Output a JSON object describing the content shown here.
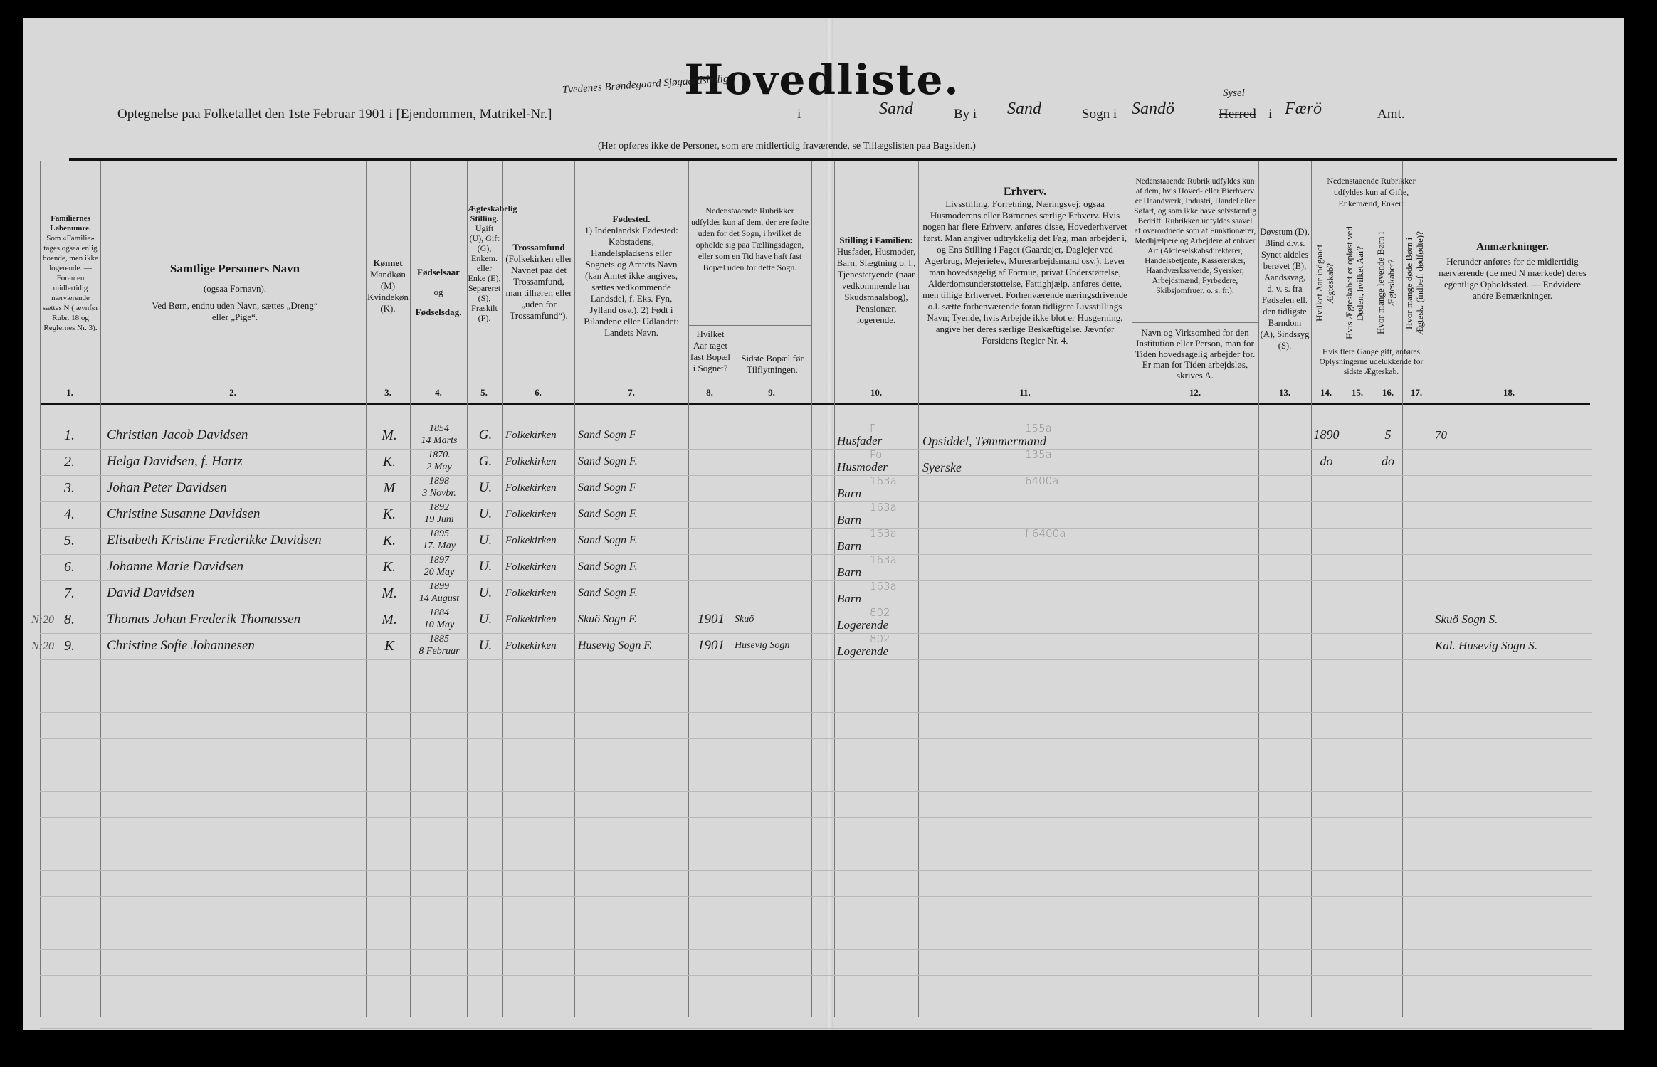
{
  "title": "Hovedliste.",
  "subtitle": {
    "prefix": "Optegnelse paa Folketallet den 1ste Februar 1901 i [Ejendommen, Matrikel-Nr.]",
    "property_handwritten": "Tvedenes Brøndegaard Sjøgaardsbolig",
    "i_label": "i",
    "place_handwritten": "Sand",
    "by_label": "By i",
    "by_handwritten": "Sand",
    "sogn_label": "Sogn i",
    "sogn_handwritten": "Sandö",
    "herred_label": "Herred",
    "herred_correction": "Sysel",
    "herred_i": "i",
    "amt_handwritten": "Færö",
    "amt_label": "Amt."
  },
  "note": "(Her opføres ikke de Personer, som ere midlertidig fraværende, se Tillægslisten paa Bagsiden.)",
  "headers": {
    "c1": {
      "title": "Familiernes Løbenumre.",
      "body": "Som «Familie» tages ogsaa enlig boende, men ikke logerende. — Foran en midlertidig nærværende sættes N (jævnfør Rubr. 18 og Reglernes Nr. 3)."
    },
    "c2": {
      "title": "Samtlige Personers Navn",
      "body1": "(ogsaa Fornavn).",
      "body2": "Ved Børn, endnu uden Navn, sættes „Dreng“ eller „Pige“."
    },
    "c3": {
      "title": "Kønnet",
      "body": "Mandkøn (M) Kvindekøn (K)."
    },
    "c4": {
      "title": "Fødselsaar",
      "mid": "og",
      "title2": "Fødselsdag."
    },
    "c5": {
      "title": "Ægteskabelig Stilling.",
      "body": "Ugift (U), Gift (G), Enkem. eller Enke (E), Separeret (S), Fraskilt (F)."
    },
    "c6": {
      "title": "Trossamfund",
      "body": "(Folkekirken eller Navnet paa det Trossamfund, man tilhører, eller „uden for Trossamfund“)."
    },
    "c7": {
      "title": "Fødested.",
      "body": "1) Indenlandsk Fødested: Købstadens, Handelspladsens eller Sognets og Amtets Navn (kan Amtet ikke angives, sættes vedkommende Landsdel, f. Eks. Fyn, Jylland osv.). 2) Født i Bilandene eller Udlandet: Landets Navn."
    },
    "c8_9_top": "Nedenstaaende Rubrikker udfyldes kun af dem, der ere fødte uden for det Sogn, i hvilket de opholde sig paa Tællingsdagen, eller som en Tid have haft fast Bopæl uden for dette Sogn.",
    "c8": "Hvilket Aar taget fast Bopæl i Sognet?",
    "c9": "Sidste Bopæl før Tilflytningen.",
    "c10": {
      "title": "Stilling i Familien:",
      "body": "Husfader, Husmoder, Barn, Slægtning o. l., Tjenestetyende (naar vedkommende har Skudsmaalsbog), Pensionær, logerende."
    },
    "c11": {
      "title": "Erhverv.",
      "body": "Livsstilling, Forretning, Næringsvej; ogsaa Husmoderens eller Børnenes særlige Erhverv. Hvis nogen har flere Erhverv, anføres disse, Hovederhvervet først. Man angiver udtrykkelig det Fag, man arbejder i, og Ens Stilling i Faget (Gaardejer, Daglejer ved Agerbrug, Mejerielev, Murerarbejdsmand osv.). Lever man hovedsagelig af Formue, privat Understøttelse, Alderdomsunderstøttelse, Fattighjælp, anføres dette, men tillige Erhvervet. Forhenværende næringsdrivende o.l. sætte forhenværende foran tidligere Livsstillings Navn; Tyende, hvis Arbejde ikke blot er Husgerning, angive her deres særlige Beskæftigelse. Jævnfør Forsidens Regler Nr. 4."
    },
    "c12_top": "Nedenstaaende Rubrik udfyldes kun af dem, hvis Hoved- eller Bierhverv er Haandværk, Industri, Handel eller Søfart, og som ikke have selvstændig Bedrift. Rubrikken udfyldes saavel af overordnede som af Funktionærer, Medhjælpere og Arbejdere af enhver Art (Aktieselskabsdirektører, Handelsbetjente, Kasserersker, Haandværkssvende, Syersker, Arbejdsmænd, Fyrbødere, Skibsjomfruer, o. s. fr.).",
    "c12": "Navn og Virksomhed for den Institution eller Person, man for Tiden hovedsagelig arbejder for. Er man for Tiden arbejdsløs, skrives A.",
    "c13": "Døvstum (D), Blind d.v.s. Synet aldeles berøvet (B), Aandssvag, d. v. s. fra Fødselen ell. den tidligste Barndom (A), Sindssyg (S).",
    "c14_17_top": "Nedenstaaende Rubrikker udfyldes kun af Gifte, Enkemænd, Enker:",
    "c14": "Hvilket Aar indgaaet Ægteskab?",
    "c15": "Hvis Ægteskabet er opløst ved Døden, hvilket Aar?",
    "c16": "Hvor mange levende Børn i Ægteskabet?",
    "c17": "Hvor mange døde Børn i Ægtesk. (indbef. dødfødte)?",
    "c14_17_bottom": "Hvis flere Gange gift, anføres Oplysningerne udelukkende for sidste Ægteskab.",
    "c18": {
      "title": "Anmærkninger.",
      "body": "Herunder anføres for de midlertidig nærværende (de med N mærkede) deres egentlige Opholdssted. — Endvidere andre Bemærkninger."
    }
  },
  "column_numbers": [
    "1.",
    "2.",
    "3.",
    "4.",
    "5.",
    "6.",
    "7.",
    "8.",
    "9.",
    "10.",
    "11.",
    "12.",
    "13.",
    "14.",
    "15.",
    "16.",
    "17.",
    "18."
  ],
  "rows": [
    {
      "margin": "",
      "num": "1.",
      "name": "Christian Jacob Davidsen",
      "sex": "M.",
      "year": "1854",
      "date": "14 Marts",
      "marital": "G.",
      "religion": "Folkekirken",
      "birthplace": "Sand Sogn F",
      "settled": "",
      "prev": "",
      "family": "Husfader",
      "occupation": "Opsiddel, Tømmermand",
      "c14": "1890",
      "c16": "5",
      "remarks": "70",
      "pencil_family": "F",
      "pencil_occ": "155a"
    },
    {
      "margin": "",
      "num": "2.",
      "name": "Helga Davidsen, f. Hartz",
      "sex": "K.",
      "year": "1870.",
      "date": "2 May",
      "marital": "G.",
      "religion": "Folkekirken",
      "birthplace": "Sand Sogn F.",
      "settled": "",
      "prev": "",
      "family": "Husmoder",
      "occupation": "Syerske",
      "c14": "do",
      "c16": "do",
      "remarks": "",
      "pencil_family": "Fo",
      "pencil_occ": "135a"
    },
    {
      "margin": "",
      "num": "3.",
      "name": "Johan Peter Davidsen",
      "sex": "M",
      "year": "1898",
      "date": "3 Novbr.",
      "marital": "U.",
      "religion": "Folkekirken",
      "birthplace": "Sand Sogn F",
      "settled": "",
      "prev": "",
      "family": "Barn",
      "occupation": "",
      "c14": "",
      "c16": "",
      "remarks": "",
      "pencil_family": "163a",
      "pencil_occ": "6400a"
    },
    {
      "margin": "",
      "num": "4.",
      "name": "Christine Susanne Davidsen",
      "sex": "K.",
      "year": "1892",
      "date": "19 Juni",
      "marital": "U.",
      "religion": "Folkekirken",
      "birthplace": "Sand Sogn F.",
      "settled": "",
      "prev": "",
      "family": "Barn",
      "occupation": "",
      "c14": "",
      "c16": "",
      "remarks": "",
      "pencil_family": "163a",
      "pencil_occ": ""
    },
    {
      "margin": "",
      "num": "5.",
      "name": "Elisabeth Kristine Frederikke Davidsen",
      "sex": "K.",
      "year": "1895",
      "date": "17. May",
      "marital": "U.",
      "religion": "Folkekirken",
      "birthplace": "Sand Sogn F.",
      "settled": "",
      "prev": "",
      "family": "Barn",
      "occupation": "",
      "c14": "",
      "c16": "",
      "remarks": "",
      "pencil_family": "163a",
      "pencil_occ": "f 6400a"
    },
    {
      "margin": "",
      "num": "6.",
      "name": "Johanne Marie Davidsen",
      "sex": "K.",
      "year": "1897",
      "date": "20 May",
      "marital": "U.",
      "religion": "Folkekirken",
      "birthplace": "Sand Sogn F.",
      "settled": "",
      "prev": "",
      "family": "Barn",
      "occupation": "",
      "c14": "",
      "c16": "",
      "remarks": "",
      "pencil_family": "163a",
      "pencil_occ": ""
    },
    {
      "margin": "",
      "num": "7.",
      "name": "David Davidsen",
      "sex": "M.",
      "year": "1899",
      "date": "14 August",
      "marital": "U.",
      "religion": "Folkekirken",
      "birthplace": "Sand Sogn F.",
      "settled": "",
      "prev": "",
      "family": "Barn",
      "occupation": "",
      "c14": "",
      "c16": "",
      "remarks": "",
      "pencil_family": "163a",
      "pencil_occ": ""
    },
    {
      "margin": "N:20",
      "num": "8.",
      "name": "Thomas Johan Frederik Thomassen",
      "sex": "M.",
      "year": "1884",
      "date": "10 May",
      "marital": "U.",
      "religion": "Folkekirken",
      "birthplace": "Skuö Sogn F.",
      "settled": "1901",
      "prev": "Skuö",
      "family": "Logerende",
      "occupation": "",
      "c14": "",
      "c16": "",
      "remarks": "Skuö Sogn S.",
      "pencil_family": "802",
      "pencil_occ": ""
    },
    {
      "margin": "N:20",
      "num": "9.",
      "name": "Christine Sofie Johannesen",
      "sex": "K",
      "year": "1885",
      "date": "8 Februar",
      "marital": "U.",
      "religion": "Folkekirken",
      "birthplace": "Husevig Sogn F.",
      "settled": "1901",
      "prev": "Husevig Sogn",
      "family": "Logerende",
      "occupation": "",
      "c14": "",
      "c16": "",
      "remarks": "Kal. Husevig Sogn S.",
      "pencil_family": "802",
      "pencil_occ": ""
    }
  ],
  "colors": {
    "paper": "#d8d8d8",
    "ink": "#1c1c1c",
    "pencil": "#8d8d8d",
    "border": "#000000"
  }
}
